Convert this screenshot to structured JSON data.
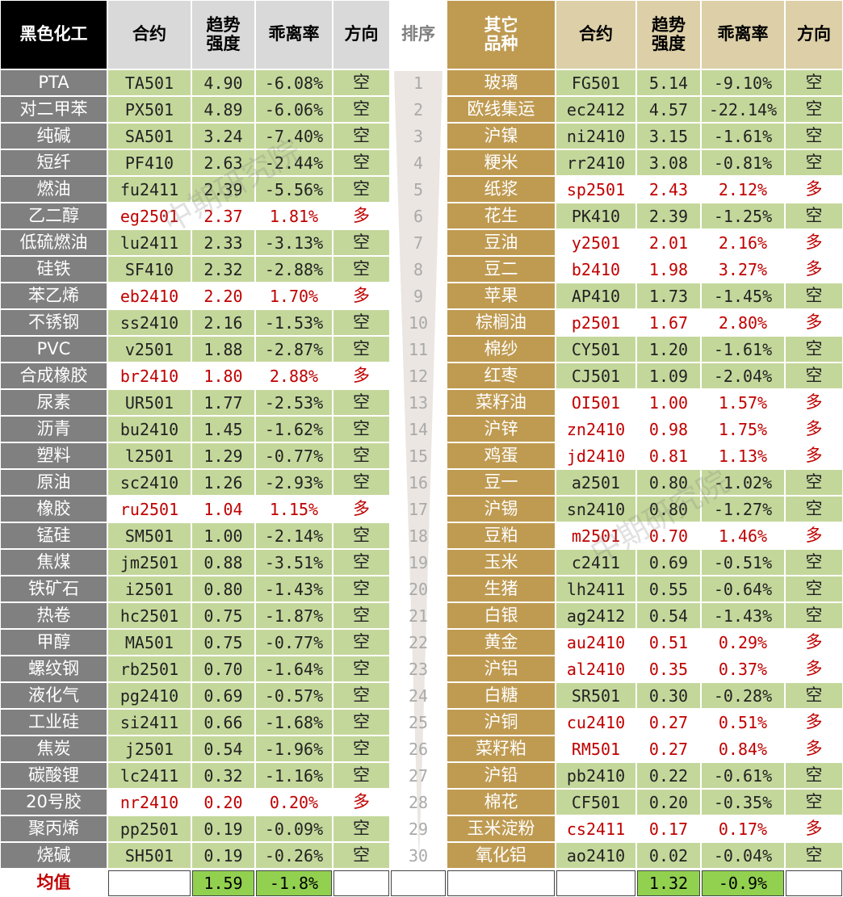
{
  "header": {
    "left": [
      "黑色化工",
      "合约",
      [
        "趋势",
        "强度"
      ],
      "乖离率",
      "方向"
    ],
    "rank": "排序",
    "right": [
      [
        "其它",
        "品种"
      ],
      "合约",
      [
        "趋势",
        "强度"
      ],
      "乖离率",
      "方向"
    ]
  },
  "rows": [
    {
      "rank": "1",
      "left": [
        "PTA",
        "TA501",
        "4.90",
        "-6.08%",
        "空"
      ],
      "right": [
        "玻璃",
        "FG501",
        "5.14",
        "-9.10%",
        "空"
      ]
    },
    {
      "rank": "2",
      "left": [
        "对二甲苯",
        "PX501",
        "4.89",
        "-6.06%",
        "空"
      ],
      "right": [
        "欧线集运",
        "ec2412",
        "4.57",
        "-22.14%",
        "空"
      ]
    },
    {
      "rank": "3",
      "left": [
        "纯碱",
        "SA501",
        "3.24",
        "-7.40%",
        "空"
      ],
      "right": [
        "沪镍",
        "ni2410",
        "3.15",
        "-1.61%",
        "空"
      ]
    },
    {
      "rank": "4",
      "left": [
        "短纤",
        "PF410",
        "2.63",
        "-2.44%",
        "空"
      ],
      "right": [
        "粳米",
        "rr2410",
        "3.08",
        "-0.81%",
        "空"
      ]
    },
    {
      "rank": "5",
      "left": [
        "燃油",
        "fu2411",
        "2.39",
        "-5.56%",
        "空"
      ],
      "right": [
        "纸浆",
        "sp2501",
        "2.43",
        "2.12%",
        "多"
      ]
    },
    {
      "rank": "6",
      "left": [
        "乙二醇",
        "eg2501",
        "2.37",
        "1.81%",
        "多"
      ],
      "right": [
        "花生",
        "PK410",
        "2.39",
        "-1.25%",
        "空"
      ]
    },
    {
      "rank": "7",
      "left": [
        "低硫燃油",
        "lu2411",
        "2.33",
        "-3.13%",
        "空"
      ],
      "right": [
        "豆油",
        "y2501",
        "2.01",
        "2.16%",
        "多"
      ]
    },
    {
      "rank": "8",
      "left": [
        "硅铁",
        "SF410",
        "2.32",
        "-2.88%",
        "空"
      ],
      "right": [
        "豆二",
        "b2410",
        "1.98",
        "3.27%",
        "多"
      ]
    },
    {
      "rank": "9",
      "left": [
        "苯乙烯",
        "eb2410",
        "2.20",
        "1.70%",
        "多"
      ],
      "right": [
        "苹果",
        "AP410",
        "1.73",
        "-1.45%",
        "空"
      ]
    },
    {
      "rank": "10",
      "left": [
        "不锈钢",
        "ss2410",
        "2.16",
        "-1.53%",
        "空"
      ],
      "right": [
        "棕榈油",
        "p2501",
        "1.67",
        "2.80%",
        "多"
      ]
    },
    {
      "rank": "11",
      "left": [
        "PVC",
        "v2501",
        "1.88",
        "-2.87%",
        "空"
      ],
      "right": [
        "棉纱",
        "CY501",
        "1.20",
        "-1.61%",
        "空"
      ]
    },
    {
      "rank": "12",
      "left": [
        "合成橡胶",
        "br2410",
        "1.80",
        "2.88%",
        "多"
      ],
      "right": [
        "红枣",
        "CJ501",
        "1.09",
        "-2.04%",
        "空"
      ]
    },
    {
      "rank": "13",
      "left": [
        "尿素",
        "UR501",
        "1.77",
        "-2.53%",
        "空"
      ],
      "right": [
        "菜籽油",
        "OI501",
        "1.00",
        "1.57%",
        "多"
      ]
    },
    {
      "rank": "14",
      "left": [
        "沥青",
        "bu2410",
        "1.45",
        "-1.62%",
        "空"
      ],
      "right": [
        "沪锌",
        "zn2410",
        "0.98",
        "1.75%",
        "多"
      ]
    },
    {
      "rank": "15",
      "left": [
        "塑料",
        "l2501",
        "1.29",
        "-0.77%",
        "空"
      ],
      "right": [
        "鸡蛋",
        "jd2410",
        "0.81",
        "1.13%",
        "多"
      ]
    },
    {
      "rank": "16",
      "left": [
        "原油",
        "sc2410",
        "1.26",
        "-2.93%",
        "空"
      ],
      "right": [
        "豆一",
        "a2501",
        "0.80",
        "-1.02%",
        "空"
      ]
    },
    {
      "rank": "17",
      "left": [
        "橡胶",
        "ru2501",
        "1.04",
        "1.15%",
        "多"
      ],
      "right": [
        "沪锡",
        "sn2410",
        "0.80",
        "-1.27%",
        "空"
      ]
    },
    {
      "rank": "18",
      "left": [
        "锰硅",
        "SM501",
        "1.00",
        "-2.14%",
        "空"
      ],
      "right": [
        "豆粕",
        "m2501",
        "0.70",
        "1.46%",
        "多"
      ]
    },
    {
      "rank": "19",
      "left": [
        "焦煤",
        "jm2501",
        "0.88",
        "-3.51%",
        "空"
      ],
      "right": [
        "玉米",
        "c2411",
        "0.69",
        "-0.51%",
        "空"
      ]
    },
    {
      "rank": "20",
      "left": [
        "铁矿石",
        "i2501",
        "0.80",
        "-1.43%",
        "空"
      ],
      "right": [
        "生猪",
        "lh2411",
        "0.55",
        "-0.64%",
        "空"
      ]
    },
    {
      "rank": "21",
      "left": [
        "热卷",
        "hc2501",
        "0.75",
        "-1.87%",
        "空"
      ],
      "right": [
        "白银",
        "ag2412",
        "0.54",
        "-1.43%",
        "空"
      ]
    },
    {
      "rank": "22",
      "left": [
        "甲醇",
        "MA501",
        "0.75",
        "-0.77%",
        "空"
      ],
      "right": [
        "黄金",
        "au2410",
        "0.51",
        "0.29%",
        "多"
      ]
    },
    {
      "rank": "23",
      "left": [
        "螺纹钢",
        "rb2501",
        "0.70",
        "-1.64%",
        "空"
      ],
      "right": [
        "沪铝",
        "al2410",
        "0.35",
        "0.37%",
        "多"
      ]
    },
    {
      "rank": "24",
      "left": [
        "液化气",
        "pg2410",
        "0.69",
        "-0.57%",
        "空"
      ],
      "right": [
        "白糖",
        "SR501",
        "0.30",
        "-0.28%",
        "空"
      ]
    },
    {
      "rank": "25",
      "left": [
        "工业硅",
        "si2411",
        "0.66",
        "-1.68%",
        "空"
      ],
      "right": [
        "沪铜",
        "cu2410",
        "0.27",
        "0.51%",
        "多"
      ]
    },
    {
      "rank": "26",
      "left": [
        "焦炭",
        "j2501",
        "0.54",
        "-1.96%",
        "空"
      ],
      "right": [
        "菜籽粕",
        "RM501",
        "0.27",
        "0.84%",
        "多"
      ]
    },
    {
      "rank": "27",
      "left": [
        "碳酸锂",
        "lc2411",
        "0.32",
        "-1.16%",
        "空"
      ],
      "right": [
        "沪铅",
        "pb2410",
        "0.22",
        "-0.61%",
        "空"
      ]
    },
    {
      "rank": "28",
      "left": [
        "20号胶",
        "nr2410",
        "0.20",
        "0.20%",
        "多"
      ],
      "right": [
        "棉花",
        "CF501",
        "0.20",
        "-0.35%",
        "空"
      ]
    },
    {
      "rank": "29",
      "left": [
        "聚丙烯",
        "pp2501",
        "0.19",
        "-0.09%",
        "空"
      ],
      "right": [
        "玉米淀粉",
        "cs2411",
        "0.17",
        "0.17%",
        "多"
      ]
    },
    {
      "rank": "30",
      "left": [
        "烧碱",
        "SH501",
        "0.19",
        "-0.26%",
        "空"
      ],
      "right": [
        "氧化铝",
        "ao2410",
        "0.02",
        "-0.04%",
        "空"
      ]
    }
  ],
  "footer": {
    "label": "均值",
    "left": [
      "1.59",
      "-1.8%"
    ],
    "right": [
      "1.32",
      "-0.9%"
    ]
  },
  "watermark": "中期研究院"
}
